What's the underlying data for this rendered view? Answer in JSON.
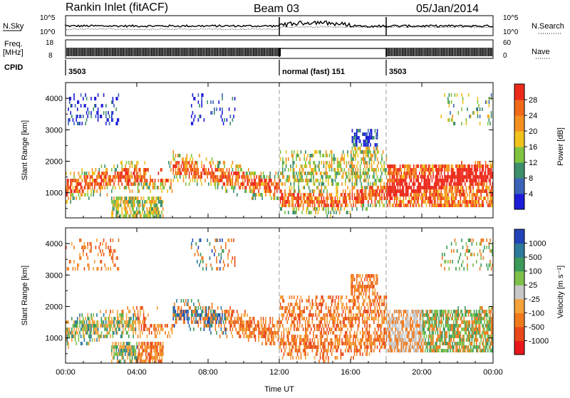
{
  "header": {
    "title": "Rankin Inlet (fitACF)",
    "beam": "Beam 03",
    "date": "05/Jan/2014"
  },
  "strip_labels": {
    "nsky": "N.Sky",
    "nsearch": "N.Search",
    "freq_top": "Freq.",
    "freq_unit": "[MHz]",
    "nave": "Nave",
    "cpid": "CPID",
    "nsky_ticks": [
      "10^5",
      "10^0"
    ],
    "nsearch_ticks": [
      "10^5",
      "10^0"
    ],
    "freq_ticks": [
      "18",
      "8"
    ],
    "nave_ticks": [
      "60",
      "0"
    ]
  },
  "cpid_segments": [
    {
      "label": "3503",
      "start_h": 0,
      "end_h": 12
    },
    {
      "label": "normal (fast) 151",
      "start_h": 12,
      "end_h": 18
    },
    {
      "label": "3503",
      "start_h": 18,
      "end_h": 24
    }
  ],
  "chart_data": [
    {
      "type": "heatmap",
      "name": "power",
      "ylabel": "Slant Range [km]",
      "xlabel": "Time UT",
      "xlim": [
        0,
        24
      ],
      "ylim": [
        200,
        4500
      ],
      "xticks": [
        "00:00",
        "04:00",
        "08:00",
        "12:00",
        "16:00",
        "20:00",
        "00:00"
      ],
      "yticks": [
        1000,
        2000,
        3000,
        4000
      ],
      "colorbar_label": "Power [dB]",
      "colorbar_ticks": [
        4,
        8,
        12,
        16,
        20,
        24,
        28
      ],
      "colors": [
        "#1b1bd8",
        "#3a64b8",
        "#3c8f6a",
        "#7fc440",
        "#f0c21c",
        "#f59020",
        "#f06a1a",
        "#ec2a1a"
      ]
    },
    {
      "type": "heatmap",
      "name": "velocity",
      "ylabel": "Slant Range [km]",
      "xlabel": "Time UT",
      "xlim": [
        0,
        24
      ],
      "ylim": [
        200,
        4500
      ],
      "xticks": [
        "00:00",
        "04:00",
        "08:00",
        "12:00",
        "16:00",
        "20:00",
        "00:00"
      ],
      "yticks": [
        1000,
        2000,
        3000,
        4000
      ],
      "colorbar_label": "Velocity [m s⁻¹]",
      "colorbar_ticks": [
        1000,
        500,
        100,
        25,
        -25,
        -100,
        -500,
        -1000
      ],
      "colors": [
        "#2244b8",
        "#2e7a9a",
        "#3c9a5a",
        "#7cc04a",
        "#c8c8c8",
        "#f5a23a",
        "#f07a1e",
        "#e9481a",
        "#e8181a"
      ]
    }
  ],
  "xaxis_title": "Time UT"
}
